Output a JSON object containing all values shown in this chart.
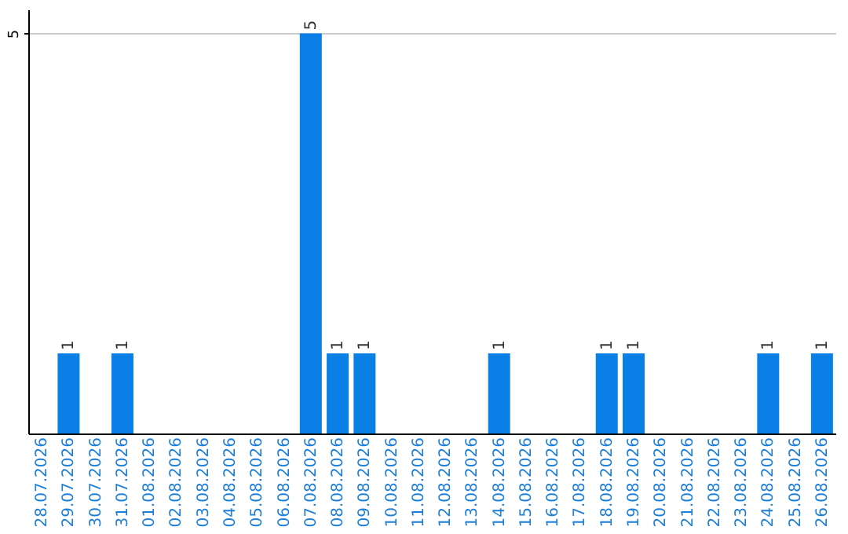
{
  "chart_data": {
    "type": "bar",
    "categories": [
      "28.07.2026",
      "29.07.2026",
      "30.07.2026",
      "31.07.2026",
      "01.08.2026",
      "02.08.2026",
      "03.08.2026",
      "04.08.2026",
      "05.08.2026",
      "06.08.2026",
      "07.08.2026",
      "08.08.2026",
      "09.08.2026",
      "10.08.2026",
      "11.08.2026",
      "12.08.2026",
      "13.08.2026",
      "14.08.2026",
      "15.08.2026",
      "16.08.2026",
      "17.08.2026",
      "18.08.2026",
      "19.08.2026",
      "20.08.2026",
      "21.08.2026",
      "22.08.2026",
      "23.08.2026",
      "24.08.2026",
      "25.08.2026",
      "26.08.2026"
    ],
    "values": [
      0,
      1,
      0,
      1,
      0,
      0,
      0,
      0,
      0,
      0,
      5,
      1,
      1,
      0,
      0,
      0,
      0,
      1,
      0,
      0,
      0,
      1,
      1,
      0,
      0,
      0,
      0,
      1,
      0,
      1
    ],
    "value_labels": [
      null,
      "1",
      null,
      "1",
      null,
      null,
      null,
      null,
      null,
      null,
      "5",
      "1",
      "1",
      null,
      null,
      null,
      null,
      "1",
      null,
      null,
      null,
      "1",
      "1",
      null,
      null,
      null,
      null,
      "1",
      null,
      "1"
    ],
    "color": "#0a7fe6",
    "ylim": [
      0,
      5.3
    ],
    "yticks": [
      5
    ],
    "grid": "y"
  }
}
